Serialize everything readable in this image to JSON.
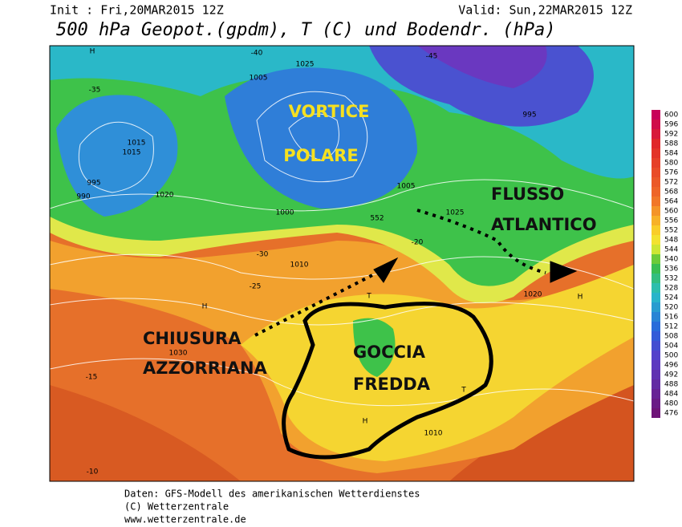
{
  "header": {
    "init": "Init : Fri,20MAR2015 12Z",
    "valid": "Valid: Sun,22MAR2015 12Z",
    "title": "500 hPa Geopot.(gpdm), T (C) und Bodendr. (hPa)"
  },
  "annotations": [
    "VORTICE",
    "POLARE",
    "FLUSSO",
    "ATLANTICO",
    "CHIUSURA",
    "AZZORRIANA",
    "GOCCIA",
    "FREDDA"
  ],
  "map_labels": [
    "H",
    "1025",
    "1005",
    "995",
    "990",
    "1000",
    "1015",
    "1020",
    "-35",
    "-30",
    "-25",
    "-20",
    "-15",
    "1030",
    "H",
    "1010",
    "T",
    "H",
    "1025",
    "1015",
    "-40",
    "-45",
    "995",
    "1005",
    "552",
    "1020",
    "T",
    "H",
    "1010",
    "-10"
  ],
  "legend": {
    "labels": [
      600,
      596,
      592,
      588,
      584,
      580,
      576,
      572,
      568,
      564,
      560,
      556,
      552,
      548,
      544,
      540,
      536,
      532,
      528,
      524,
      520,
      516,
      512,
      508,
      504,
      500,
      496,
      492,
      488,
      484,
      480,
      476
    ]
  },
  "footer": [
    "Daten: GFS-Modell des amerikanischen Wetterdienstes",
    "(C) Wetterzentrale",
    "www.wetterzentrale.de"
  ]
}
